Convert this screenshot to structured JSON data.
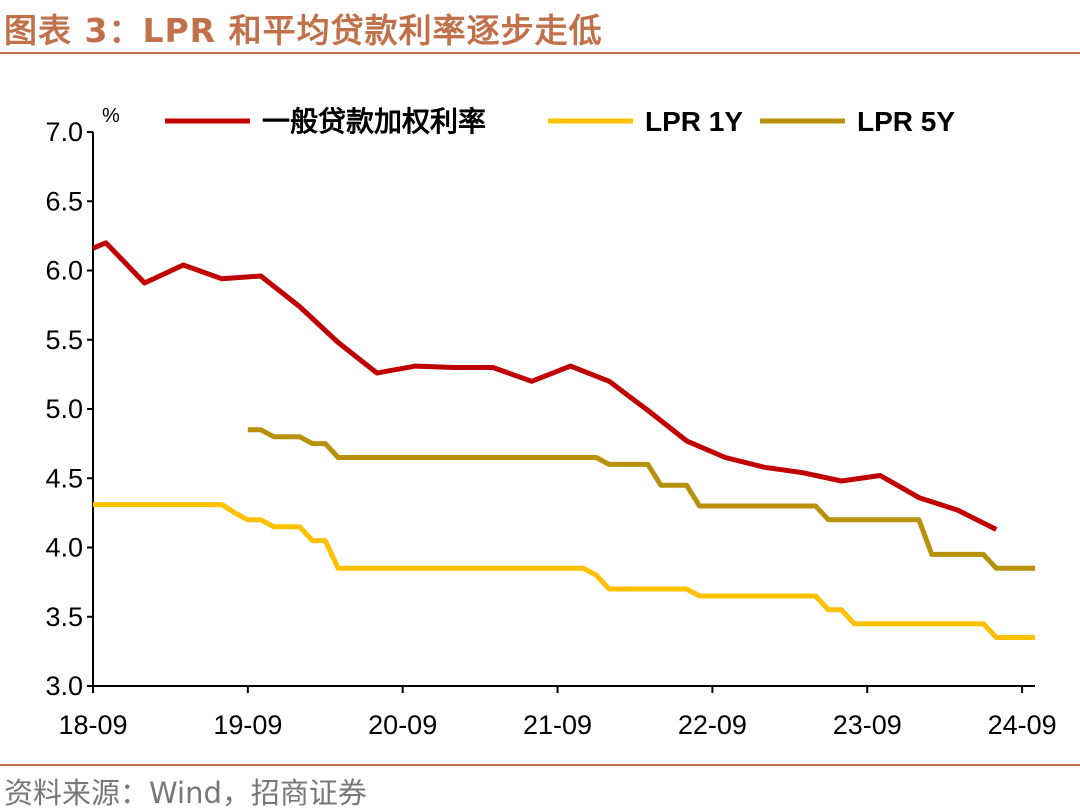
{
  "title": "图表 3：LPR 和平均贷款利率逐步走低",
  "source": "资料来源：Wind，招商证券",
  "chart_data": {
    "type": "line",
    "title": "图表 3：LPR 和平均贷款利率逐步走低",
    "ylabel": "%",
    "ylim": [
      3.0,
      7.0
    ],
    "yticks": [
      "3.0",
      "3.5",
      "4.0",
      "4.5",
      "5.0",
      "5.5",
      "6.0",
      "6.5",
      "7.0"
    ],
    "xticks": [
      "18-09",
      "19-09",
      "20-09",
      "21-09",
      "22-09",
      "23-09",
      "24-09"
    ],
    "xlim": [
      "2018-09",
      "2024-10"
    ],
    "grid": false,
    "legend_position": "top",
    "series": [
      {
        "name": "一般贷款加权利率",
        "color": "#c00000",
        "points": [
          [
            "2018-09",
            6.16
          ],
          [
            "2018-10",
            6.2
          ],
          [
            "2019-01",
            5.91
          ],
          [
            "2019-04",
            6.04
          ],
          [
            "2019-07",
            5.94
          ],
          [
            "2019-10",
            5.96
          ],
          [
            "2020-01",
            5.74
          ],
          [
            "2020-04",
            5.48
          ],
          [
            "2020-07",
            5.26
          ],
          [
            "2020-10",
            5.31
          ],
          [
            "2021-01",
            5.3
          ],
          [
            "2021-04",
            5.3
          ],
          [
            "2021-07",
            5.2
          ],
          [
            "2021-10",
            5.31
          ],
          [
            "2022-01",
            5.2
          ],
          [
            "2022-04",
            4.99
          ],
          [
            "2022-07",
            4.77
          ],
          [
            "2022-10",
            4.65
          ],
          [
            "2023-01",
            4.58
          ],
          [
            "2023-04",
            4.54
          ],
          [
            "2023-07",
            4.48
          ],
          [
            "2023-10",
            4.52
          ],
          [
            "2024-01",
            4.36
          ],
          [
            "2024-04",
            4.27
          ],
          [
            "2024-07",
            4.13
          ]
        ]
      },
      {
        "name": "LPR 1Y",
        "color": "#ffc000",
        "points": [
          [
            "2018-09",
            4.31
          ],
          [
            "2019-07",
            4.31
          ],
          [
            "2019-08",
            4.25
          ],
          [
            "2019-09",
            4.2
          ],
          [
            "2019-10",
            4.2
          ],
          [
            "2019-11",
            4.15
          ],
          [
            "2020-01",
            4.15
          ],
          [
            "2020-02",
            4.05
          ],
          [
            "2020-03",
            4.05
          ],
          [
            "2020-04",
            3.85
          ],
          [
            "2021-11",
            3.85
          ],
          [
            "2021-12",
            3.8
          ],
          [
            "2022-01",
            3.7
          ],
          [
            "2022-07",
            3.7
          ],
          [
            "2022-08",
            3.65
          ],
          [
            "2023-05",
            3.65
          ],
          [
            "2023-06",
            3.55
          ],
          [
            "2023-07",
            3.55
          ],
          [
            "2023-08",
            3.45
          ],
          [
            "2024-06",
            3.45
          ],
          [
            "2024-07",
            3.35
          ],
          [
            "2024-10",
            3.35
          ]
        ]
      },
      {
        "name": "LPR 5Y",
        "color": "#b8900a",
        "points": [
          [
            "2019-09",
            4.85
          ],
          [
            "2019-10",
            4.85
          ],
          [
            "2019-11",
            4.8
          ],
          [
            "2020-01",
            4.8
          ],
          [
            "2020-02",
            4.75
          ],
          [
            "2020-03",
            4.75
          ],
          [
            "2020-04",
            4.65
          ],
          [
            "2021-12",
            4.65
          ],
          [
            "2022-01",
            4.6
          ],
          [
            "2022-04",
            4.6
          ],
          [
            "2022-05",
            4.45
          ],
          [
            "2022-07",
            4.45
          ],
          [
            "2022-08",
            4.3
          ],
          [
            "2023-05",
            4.3
          ],
          [
            "2023-06",
            4.2
          ],
          [
            "2024-01",
            4.2
          ],
          [
            "2024-02",
            3.95
          ],
          [
            "2024-06",
            3.95
          ],
          [
            "2024-07",
            3.85
          ],
          [
            "2024-10",
            3.85
          ]
        ]
      }
    ]
  }
}
